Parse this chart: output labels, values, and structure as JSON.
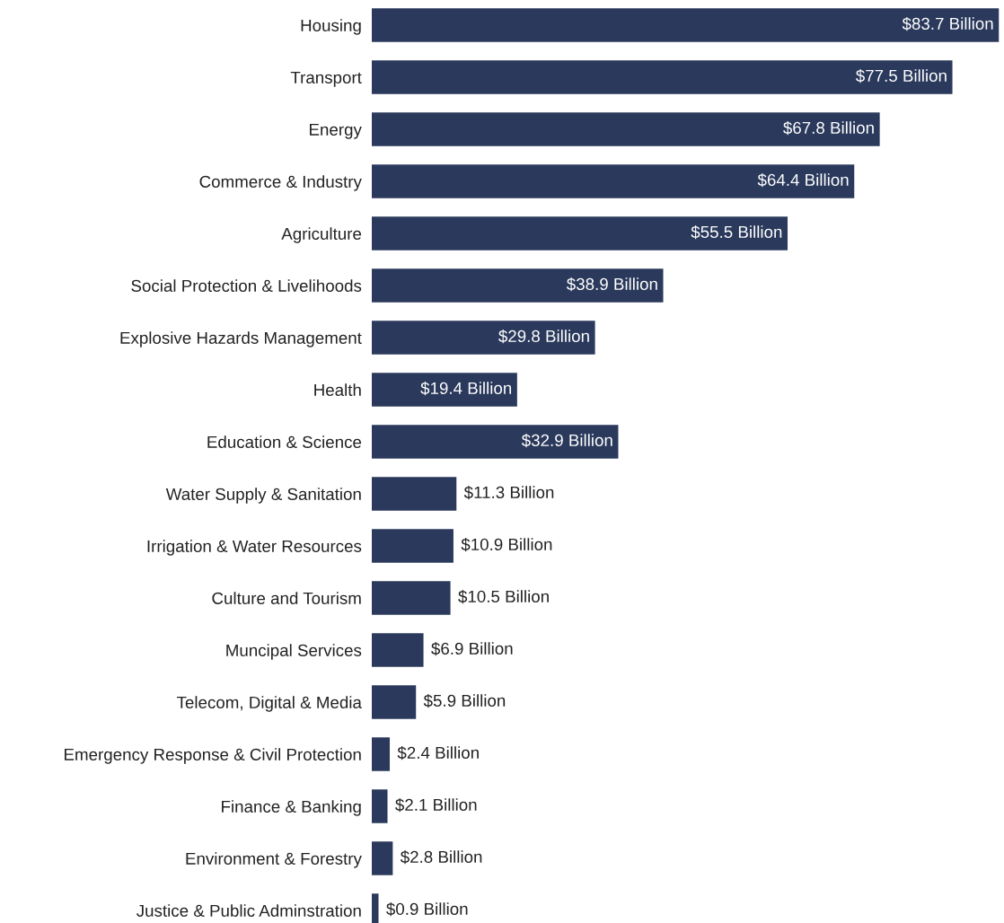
{
  "chart_data": {
    "type": "bar",
    "orientation": "horizontal",
    "categories": [
      "Housing",
      "Transport",
      "Energy",
      "Commerce & Industry",
      "Agriculture",
      "Social Protection & Livelihoods",
      "Explosive Hazards Management",
      "Health",
      "Education & Science",
      "Water Supply & Sanitation",
      "Irrigation & Water Resources",
      "Culture and Tourism",
      "Muncipal Services",
      "Telecom, Digital & Media",
      "Emergency Response & Civil Protection",
      "Finance & Banking",
      "Environment & Forestry",
      "Justice & Public Adminstration"
    ],
    "values": [
      83.7,
      77.5,
      67.8,
      64.4,
      55.5,
      38.9,
      29.8,
      19.4,
      32.9,
      11.3,
      10.9,
      10.5,
      6.9,
      5.9,
      2.4,
      2.1,
      2.8,
      0.9
    ],
    "value_labels": [
      "$83.7 Billion",
      "$77.5 Billion",
      "$67.8 Billion",
      "$64.4 Billion",
      "$55.5 Billion",
      "$38.9 Billion",
      "$29.8 Billion",
      "$19.4 Billion",
      "$32.9 Billion",
      "$11.3 Billion",
      "$10.9 Billion",
      "$10.5 Billion",
      "$6.9 Billion",
      "$5.9 Billion",
      "$2.4 Billion",
      "$2.1 Billion",
      "$2.8 Billion",
      "$0.9 Billion"
    ],
    "color": "#2b3a5c",
    "grid": false,
    "legend": false
  }
}
